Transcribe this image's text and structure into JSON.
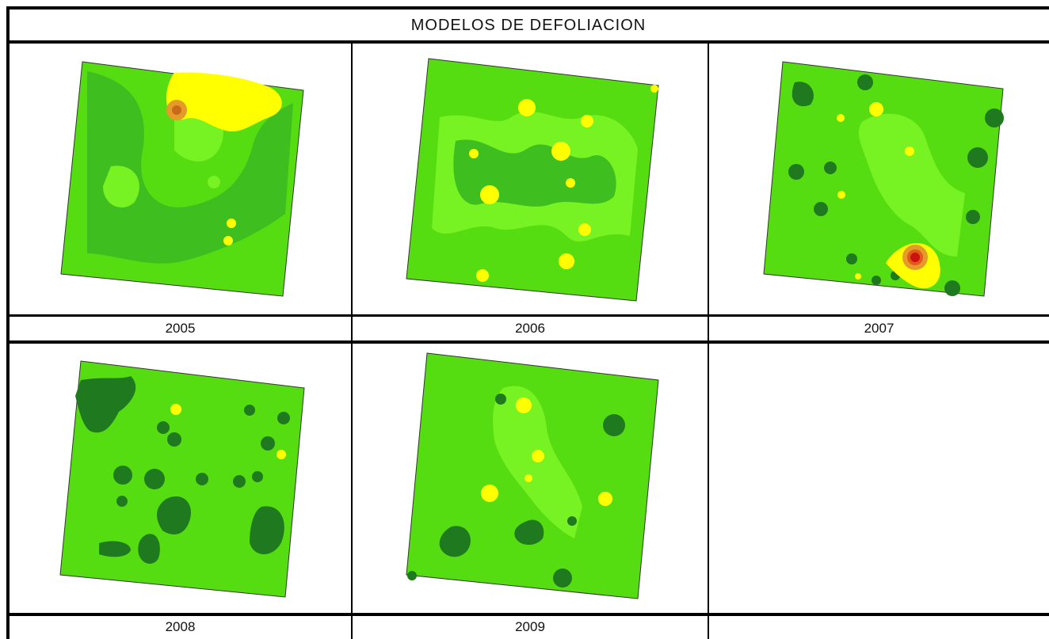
{
  "title": "MODELOS DE DEFOLIACION",
  "panels": [
    {
      "year": "2005"
    },
    {
      "year": "2006"
    },
    {
      "year": "2007"
    },
    {
      "year": "2008"
    },
    {
      "year": "2009"
    },
    {
      "year": ""
    }
  ],
  "colors": {
    "base_green": "#55dd11",
    "mid_green": "#3fbf1f",
    "light_green": "#77f222",
    "dark_green": "#1f7a1f",
    "yellow": "#ffff00",
    "orange": "#e59a2a",
    "red": "#cc1111"
  }
}
